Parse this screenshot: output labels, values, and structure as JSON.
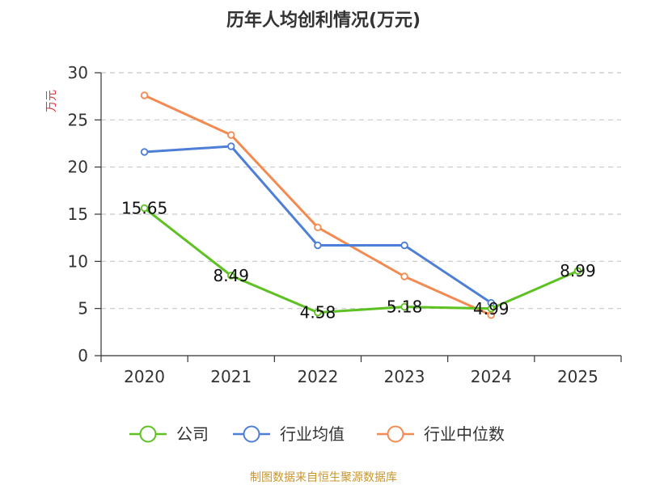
{
  "colors": {
    "company": "#5ec122",
    "industry_avg": "#4e7fd6",
    "industry_median": "#f38a52",
    "ylabel": "#d9373e",
    "source": "#c8962c",
    "axis": "#333333",
    "grid": "#c8c8c8"
  },
  "chart_data": {
    "type": "line",
    "title": "历年人均创利情况(万元)",
    "ylabel": "万元",
    "xlabel": "",
    "categories": [
      "2020",
      "2021",
      "2022",
      "2023",
      "2024",
      "2025"
    ],
    "ylim": [
      0,
      30
    ],
    "yticks": [
      0,
      5,
      10,
      15,
      20,
      25,
      30
    ],
    "grid": true,
    "legend_position": "bottom",
    "series": [
      {
        "name": "公司",
        "color_key": "company",
        "values": [
          15.65,
          8.49,
          4.58,
          5.18,
          4.99,
          8.99
        ],
        "labels": [
          "15.65",
          "8.49",
          "4.58",
          "5.18",
          "4.99",
          "8.99"
        ]
      },
      {
        "name": "行业均值",
        "color_key": "industry_avg",
        "values": [
          21.6,
          22.2,
          11.7,
          11.7,
          5.6,
          null
        ]
      },
      {
        "name": "行业中位数",
        "color_key": "industry_median",
        "values": [
          27.6,
          23.4,
          13.6,
          8.4,
          4.3,
          null
        ]
      }
    ]
  },
  "footer": {
    "source": "制图数据来自恒生聚源数据库"
  }
}
